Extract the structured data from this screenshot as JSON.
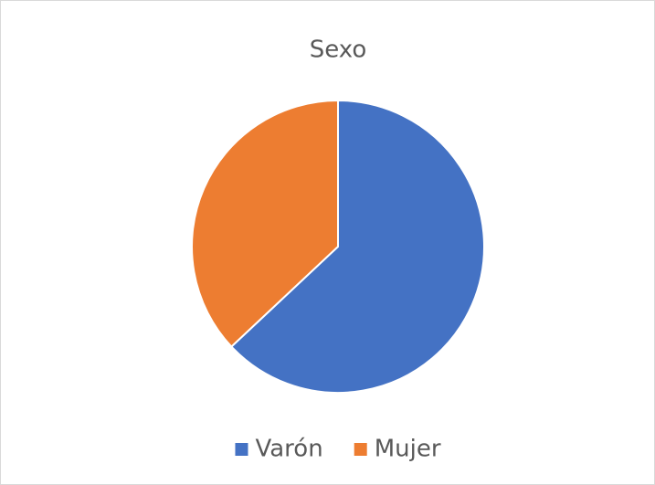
{
  "chart_data": {
    "type": "pie",
    "title": "Sexo",
    "categories": [
      "Varón",
      "Mujer"
    ],
    "values": [
      63,
      37
    ],
    "colors": [
      "#4472c4",
      "#ed7d31"
    ],
    "legend": "bottom"
  }
}
